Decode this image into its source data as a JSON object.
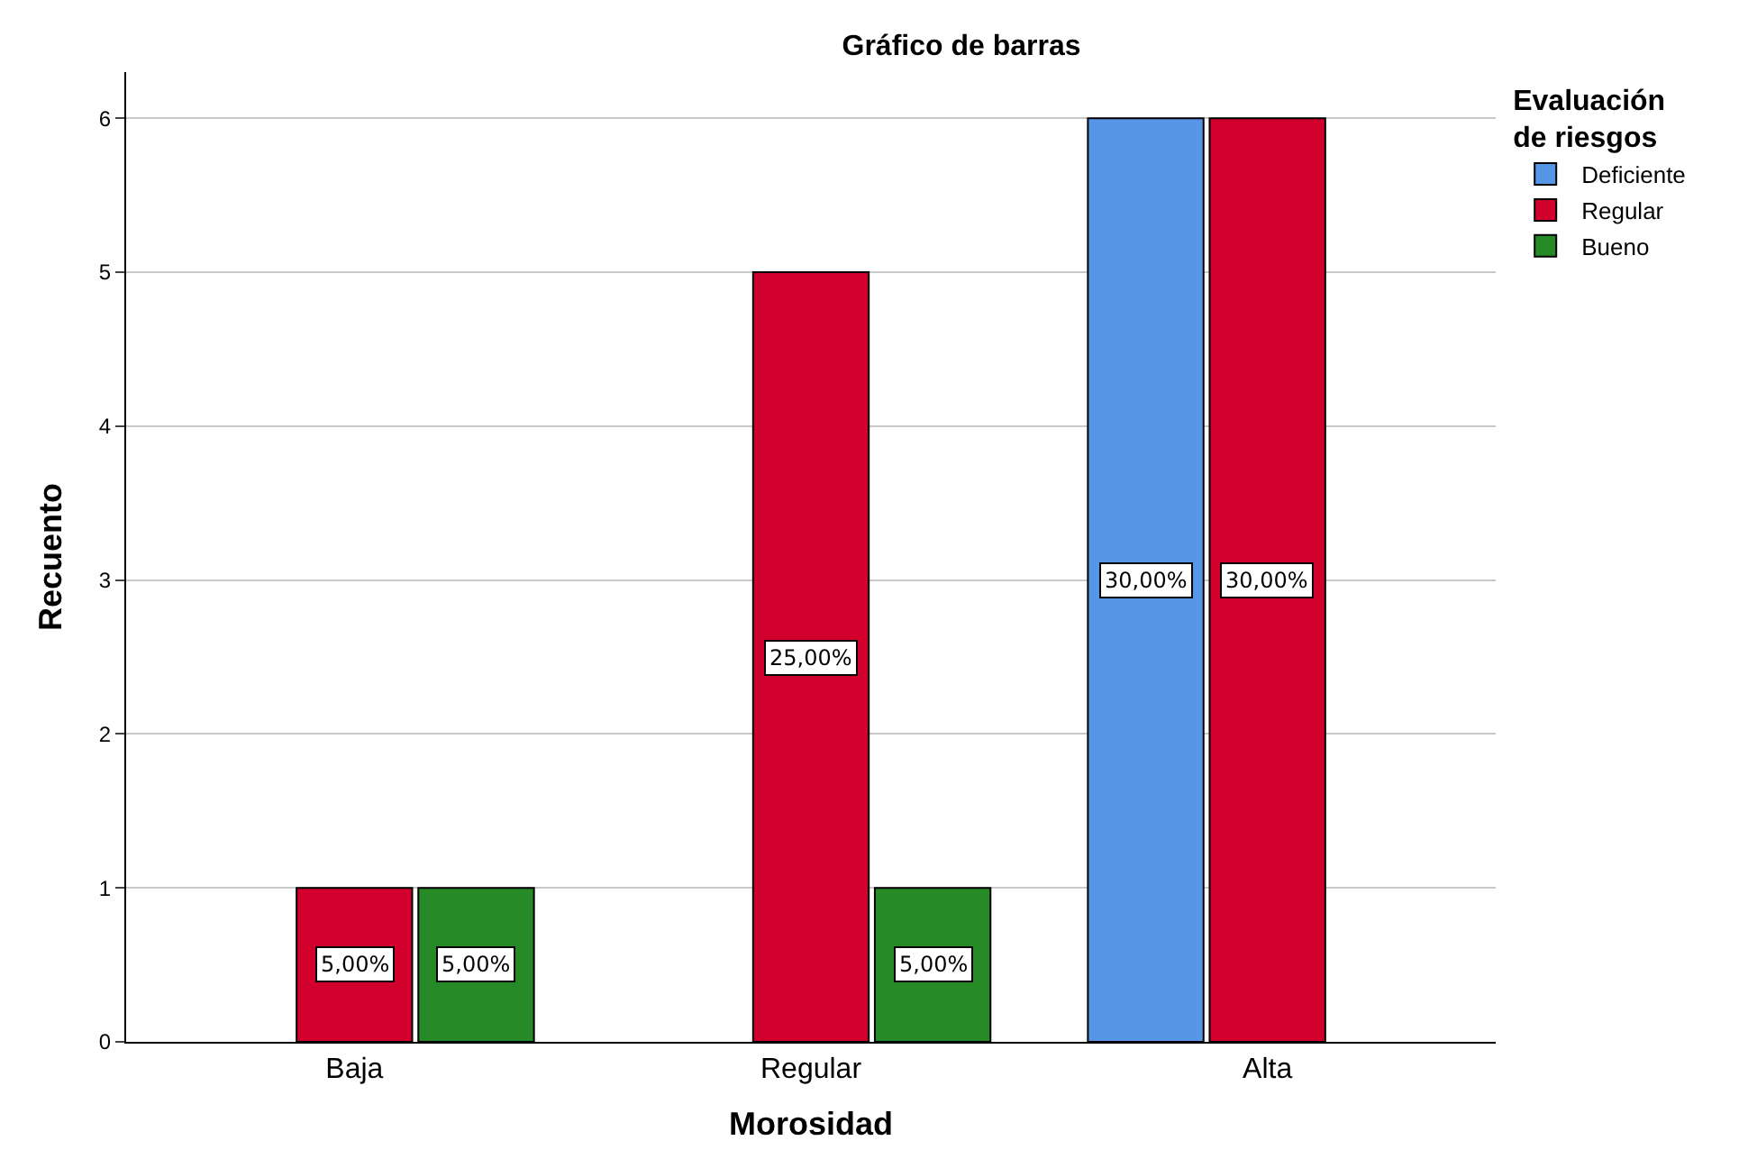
{
  "chart_data": {
    "type": "bar",
    "title": "Gráfico de barras",
    "xlabel": "Morosidad",
    "ylabel": "Recuento",
    "legend_title": "Evaluación\nde riesgos",
    "categories": [
      "Baja",
      "Regular",
      "Alta"
    ],
    "series": [
      {
        "name": "Deficiente",
        "color": "#5596e6",
        "values": [
          null,
          null,
          6
        ]
      },
      {
        "name": "Regular",
        "color": "#d2002c",
        "values": [
          1,
          5,
          6
        ]
      },
      {
        "name": "Bueno",
        "color": "#268a26",
        "values": [
          1,
          1,
          null
        ]
      }
    ],
    "annotations": [
      "5,00%",
      "5,00%",
      "25,00%",
      "5,00%",
      "30,00%",
      "30,00%"
    ],
    "ylim": [
      0,
      6.3
    ],
    "yticks": [
      0,
      1,
      2,
      3,
      4,
      5,
      6
    ],
    "grid": "y",
    "legend": "top right"
  }
}
